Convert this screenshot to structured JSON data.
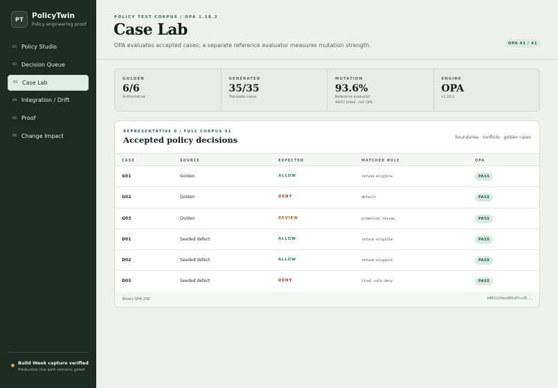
{
  "brand": {
    "logo": "PT",
    "name": "PolicyTwin",
    "subtitle": "Policy engineering proof"
  },
  "nav": [
    {
      "num": "01",
      "label": "Policy Studio"
    },
    {
      "num": "02",
      "label": "Decision Queue"
    },
    {
      "num": "03",
      "label": "Case Lab",
      "active": true
    },
    {
      "num": "04",
      "label": "Integration / Drift"
    },
    {
      "num": "05",
      "label": "Proof"
    },
    {
      "num": "06",
      "label": "Change Impact"
    }
  ],
  "sidebar_footer": {
    "title": "Build Week capture verified",
    "subtitle": "Production live path remains gated"
  },
  "header": {
    "eyebrow": "POLICY TEST CORPUS / OPA 1.18.2",
    "title": "Case Lab",
    "subtitle": "OPA evaluates accepted cases; a separate reference evaluator measures mutation strength.",
    "chip": "OPA 41 / 41"
  },
  "stats": [
    {
      "label": "GOLDEN",
      "value": "6/6",
      "note": "Authoritative",
      "note2": ""
    },
    {
      "label": "GENERATED",
      "value": "35/35",
      "note": "Traceable cases",
      "note2": ""
    },
    {
      "label": "MUTATION",
      "value": "93.6%",
      "note": "Reference evaluator",
      "note2": "44/47 killed · not OPA"
    },
    {
      "label": "ENGINE",
      "value": "OPA",
      "note": "v1.18.2",
      "note2": ""
    }
  ],
  "card": {
    "eyebrow": "REPRESENTATIVE 6 / FULL CORPUS 41",
    "title": "Accepted policy decisions",
    "tags": "boundaries · conflicts · golden cases",
    "columns": {
      "case": "CASE",
      "source": "SOURCE",
      "expected": "EXPECTED",
      "rule": "MATCHED RULE",
      "opa": "OPA"
    },
    "rows": [
      {
        "case": "G01",
        "source": "Golden",
        "expected": "ALLOW",
        "rule": "refund-eligible",
        "opa": "PASS"
      },
      {
        "case": "G02",
        "source": "Golden",
        "expected": "DENY",
        "rule": "default",
        "opa": "PASS"
      },
      {
        "case": "G03",
        "source": "Golden",
        "expected": "REVIEW",
        "rule": "promotion-review",
        "opa": "PASS"
      },
      {
        "case": "D01",
        "source": "Seeded defect",
        "expected": "ALLOW",
        "rule": "refund-eligible",
        "opa": "PASS"
      },
      {
        "case": "D02",
        "source": "Seeded defect",
        "expected": "ALLOW",
        "rule": "refund-eligible",
        "opa": "PASS"
      },
      {
        "case": "D03",
        "source": "Seeded defect",
        "expected": "DENY",
        "rule": "final-sale-deny",
        "opa": "PASS"
      }
    ],
    "footer_left": "Binary SHA-256",
    "footer_right": "b9022224ee660c87cc35..."
  },
  "colors": {
    "allow": "#2e7a52",
    "deny": "#a8412c",
    "review": "#9a6a1e"
  }
}
